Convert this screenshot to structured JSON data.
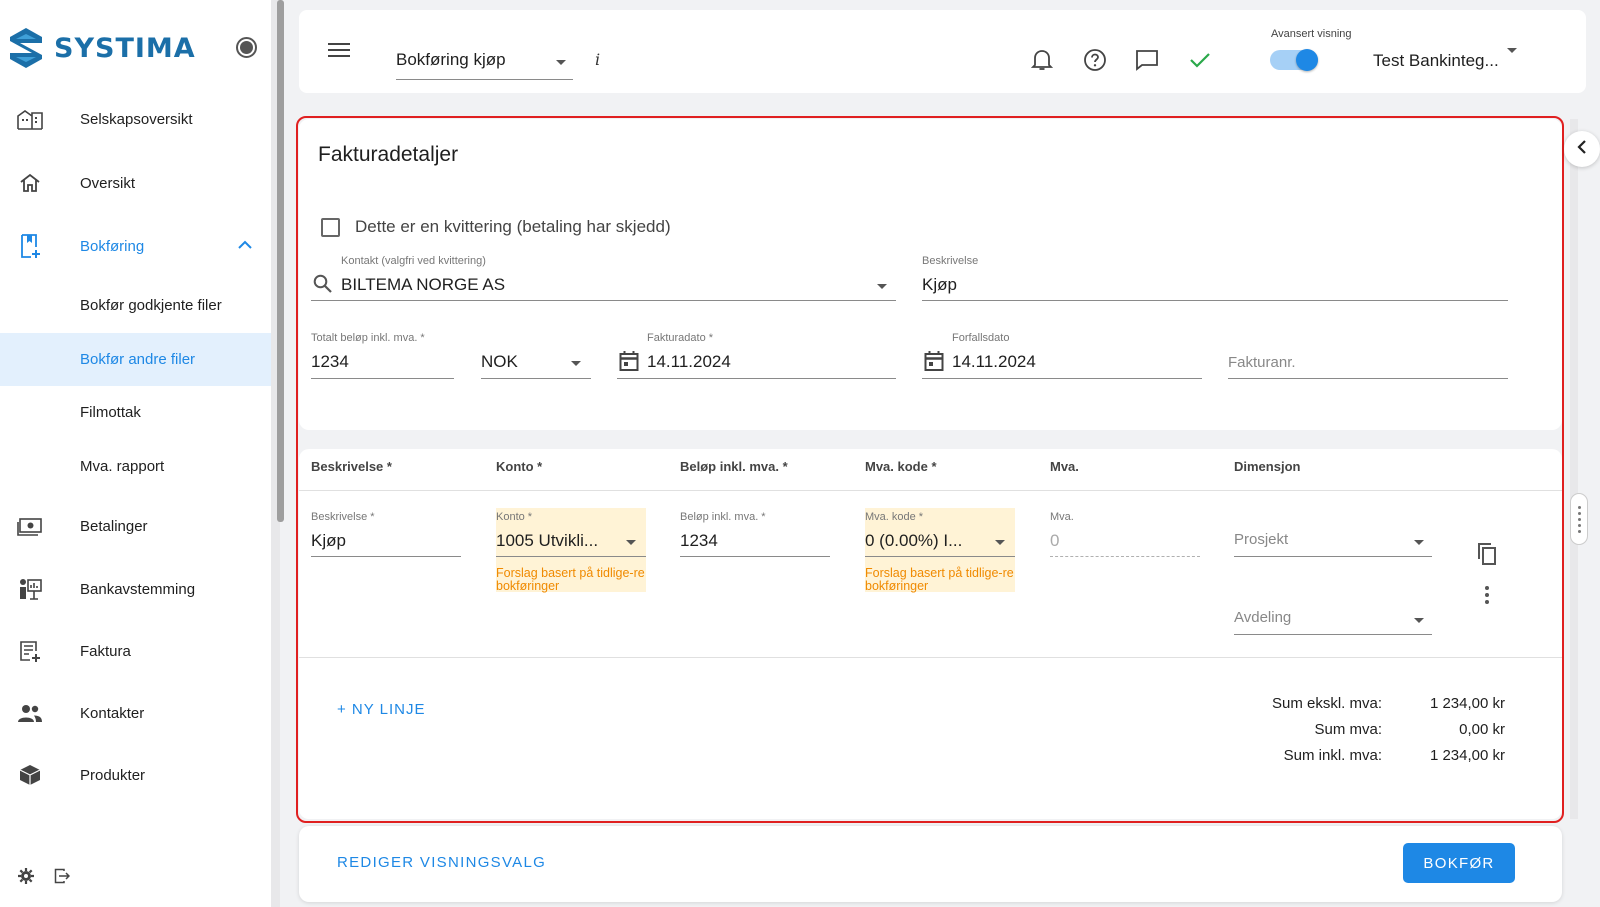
{
  "brand": {
    "name": "SYSTIMA",
    "color": "#1b6fa8"
  },
  "sidebar": {
    "items": [
      {
        "label": "Selskapsoversikt",
        "icon": "company-overview-icon"
      },
      {
        "label": "Oversikt",
        "icon": "home-icon"
      },
      {
        "label": "Bokføring",
        "icon": "bookkeeping-icon",
        "active": true
      },
      {
        "label": "Betalinger",
        "icon": "payments-icon"
      },
      {
        "label": "Bankavstemming",
        "icon": "bank-reconciliation-icon"
      },
      {
        "label": "Faktura",
        "icon": "invoice-icon"
      },
      {
        "label": "Kontakter",
        "icon": "contacts-icon"
      },
      {
        "label": "Produkter",
        "icon": "products-icon"
      }
    ],
    "subitems": [
      {
        "label": "Bokfør godkjente filer"
      },
      {
        "label": "Bokfør andre filer",
        "selected": true
      },
      {
        "label": "Filmottak"
      },
      {
        "label": "Mva. rapport"
      }
    ]
  },
  "topbar": {
    "page_select": "Bokføring kjøp",
    "info": "i",
    "advanced_label": "Avansert visning",
    "advanced_on": true,
    "company": "Test Bankinteg..."
  },
  "invoice": {
    "title": "Fakturadetaljer",
    "receipt_checkbox": "Dette er en kvittering (betaling har skjedd)",
    "contact_label": "Kontakt (valgfri ved kvittering)",
    "contact_value": "BILTEMA NORGE AS",
    "description_label": "Beskrivelse",
    "description_value": "Kjøp",
    "total_label": "Totalt beløp inkl. mva. *",
    "total_value": "1234",
    "currency": "NOK",
    "invoice_date_label": "Fakturadato *",
    "invoice_date": "14.11.2024",
    "due_date_label": "Forfallsdato",
    "due_date": "14.11.2024",
    "invoice_no_placeholder": "Fakturanr."
  },
  "lines": {
    "headers": [
      "Beskrivelse *",
      "Konto *",
      "Beløp inkl. mva. *",
      "Mva. kode *",
      "Mva.",
      "Dimensjon"
    ],
    "row": {
      "desc_label": "Beskrivelse *",
      "desc_value": "Kjøp",
      "account_label": "Konto *",
      "account_value": "1005 Utvikli...",
      "amount_label": "Beløp inkl. mva. *",
      "amount_value": "1234",
      "vat_code_label": "Mva. kode *",
      "vat_code_value": "0 (0.00%) I...",
      "vat_label": "Mva.",
      "vat_value": "0",
      "project_placeholder": "Prosjekt",
      "department_placeholder": "Avdeling",
      "suggestion": "Forslag basert på tidlige-re bokføringer"
    },
    "new_line": "+ NY LINJE",
    "sums": [
      {
        "label": "Sum ekskl. mva:",
        "value": "1 234,00 kr"
      },
      {
        "label": "Sum mva:",
        "value": "0,00 kr"
      },
      {
        "label": "Sum inkl. mva:",
        "value": "1 234,00 kr"
      }
    ]
  },
  "actions": {
    "edit_view": "REDIGER VISNINGSVALG",
    "post": "BOKFØR"
  },
  "colors": {
    "accent": "#1e88e5",
    "highlight": "#e02020",
    "suggestion_bg": "#fff3d6",
    "suggestion_text": "#f08a00"
  }
}
